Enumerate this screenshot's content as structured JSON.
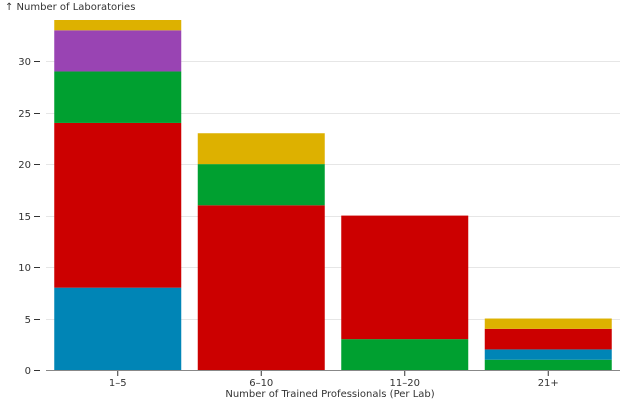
{
  "chart_data": {
    "type": "bar",
    "stacked": true,
    "categories": [
      "1–5",
      "6–10",
      "11–20",
      "21+"
    ],
    "colors": [
      "#0085b6",
      "#cc0000",
      "#00a030",
      "#9944b3",
      "#ddb100"
    ],
    "series": [
      {
        "color": "#0085b6",
        "values": [
          8,
          0,
          0,
          1
        ]
      },
      {
        "color": "#cc0000",
        "values": [
          16,
          16,
          12,
          2
        ]
      },
      {
        "color": "#00a030",
        "values": [
          5,
          4,
          3,
          1
        ]
      },
      {
        "color": "#9944b3",
        "values": [
          4,
          0,
          0,
          0
        ]
      },
      {
        "color": "#ddb100",
        "values": [
          1,
          3,
          0,
          1
        ]
      }
    ],
    "segment_order": [
      [
        0,
        1,
        2,
        3,
        4
      ],
      [
        1,
        2,
        4,
        0
      ],
      [
        2,
        1,
        0
      ],
      [
        2,
        0,
        1,
        4
      ]
    ],
    "ylabel": "↑ Number of Laboratories",
    "xlabel": "Number of Trained Professionals (Per Lab)",
    "ylim": [
      0,
      34
    ],
    "yticks": [
      0,
      5,
      10,
      15,
      20,
      25,
      30
    ],
    "ytick_labels": [
      "0",
      "5",
      "10",
      "15",
      "20",
      "25",
      "30"
    ],
    "grid": true,
    "legend": "none"
  }
}
